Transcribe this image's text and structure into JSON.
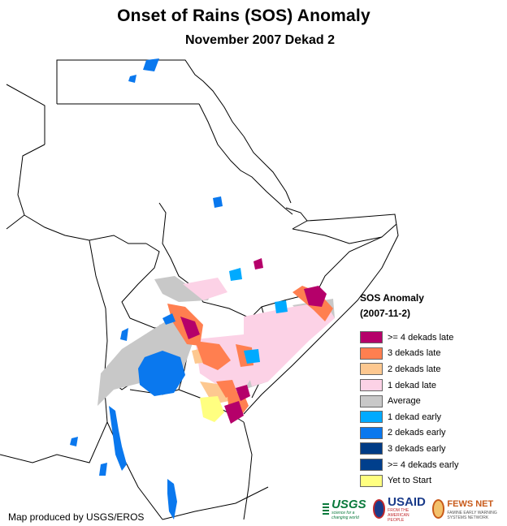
{
  "title": "Onset of Rains (SOS) Anomaly",
  "subtitle": "November 2007 Dekad 2",
  "legend": {
    "title": "SOS Anomaly",
    "date": "(2007-11-2)",
    "items": [
      {
        "label": ">= 4 dekads late",
        "color": "#b5006a"
      },
      {
        "label": "3 dekads late",
        "color": "#ff7f50"
      },
      {
        "label": "2 dekads late",
        "color": "#fdc890"
      },
      {
        "label": "1 dekad late",
        "color": "#fcd2e6"
      },
      {
        "label": "Average",
        "color": "#c8c8c8"
      },
      {
        "label": "1 dekad early",
        "color": "#00aaff"
      },
      {
        "label": "2 dekads early",
        "color": "#0a78ee"
      },
      {
        "label": "3 dekads early",
        "color": "#003b85"
      },
      {
        "label": ">= 4 dekads early",
        "color": "#003f8c"
      },
      {
        "label": "Yet to Start",
        "color": "#ffff80"
      }
    ]
  },
  "credit": "Map produced by USGS/EROS",
  "logos": {
    "usgs": {
      "name": "USGS",
      "tagline": "science for a changing world"
    },
    "usaid": {
      "name": "USAID",
      "tagline": "FROM THE AMERICAN PEOPLE"
    },
    "fewsnet": {
      "name": "FEWS NET",
      "tagline": "FAMINE EARLY WARNING SYSTEMS NETWORK"
    }
  }
}
